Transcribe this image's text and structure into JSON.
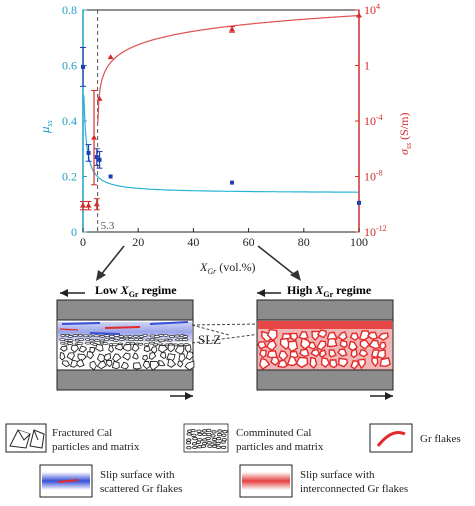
{
  "chart_data": {
    "type": "scatter",
    "x_axis": {
      "label_main": "X",
      "label_sub": "Gr",
      "label_unit": " (vol.%)",
      "range": [
        0,
        100
      ],
      "ticks": [
        "0",
        "20",
        "40",
        "60",
        "80",
        "100"
      ]
    },
    "y_left": {
      "label_main": "μ",
      "label_sub": "ss",
      "range": [
        0,
        0.8
      ],
      "ticks": [
        "0",
        "0.2",
        "0.4",
        "0.6",
        "0.8"
      ],
      "color": "#1fa0c8"
    },
    "y_right": {
      "label_main": "σ",
      "label_sub": "ss",
      "label_unit": " (S/m)",
      "scale": "log",
      "range_exp": [
        -12,
        4
      ],
      "ticks": [
        {
          "base": "10",
          "exp": "-12",
          "v": -12
        },
        {
          "base": "10",
          "exp": "-8",
          "v": -8
        },
        {
          "base": "10",
          "exp": "-4",
          "v": -4
        },
        {
          "base": "1",
          "exp": "",
          "v": 0
        },
        {
          "base": "10",
          "exp": "4",
          "v": 4
        }
      ],
      "color": "#d42a2a"
    },
    "threshold": {
      "x": 5.3,
      "label": "5.3"
    },
    "series": [
      {
        "axis": "left",
        "color": "#1f3fb0",
        "x": [
          0,
          2,
          5,
          6,
          10,
          54,
          100
        ],
        "y": [
          0.595,
          0.285,
          0.27,
          0.26,
          0.2,
          0.178,
          0.105
        ],
        "err": [
          0.07,
          0.03,
          0.03,
          0.03,
          0.0,
          0.0,
          0.0
        ]
      },
      {
        "axis": "right",
        "color": "#d42a2a",
        "x": [
          0,
          2,
          4,
          5,
          6,
          10,
          54,
          100
        ],
        "y_log": [
          -10.1,
          -10.1,
          -5.2,
          -10.0,
          -2.4,
          0.6,
          2.6,
          3.6
        ],
        "err_log": [
          0.3,
          0.3,
          3.4,
          0.4,
          0.0,
          0.0,
          0.2,
          0.0
        ]
      }
    ]
  },
  "schematic": {
    "low_regime": {
      "prefix": "Low ",
      "x": "X",
      "sub": "Gr",
      "suffix": " regime"
    },
    "high_regime": {
      "prefix": "High ",
      "x": "X",
      "sub": "Gr",
      "suffix": " regime"
    },
    "slz_label": "SLZ"
  },
  "legend": {
    "fractured_line1": "Fractured Cal",
    "fractured_line2": "particles and matrix",
    "comminuted_line1": "Comminuted Cal",
    "comminuted_line2": "particles and matrix",
    "gr_flakes": "Gr flakes",
    "scattered_line1": "Slip surface with",
    "scattered_line2": "scattered Gr flakes",
    "interconnected_line1": "Slip surface with",
    "interconnected_line2": "interconnected Gr flakes"
  },
  "colors": {
    "mu_fit": "#2bb3d4",
    "sigma_fit": "#e05050",
    "gouge_gray": "#8c8c8c",
    "slip_blue": "#3a4fd6",
    "slip_red": "#e32a2a"
  }
}
